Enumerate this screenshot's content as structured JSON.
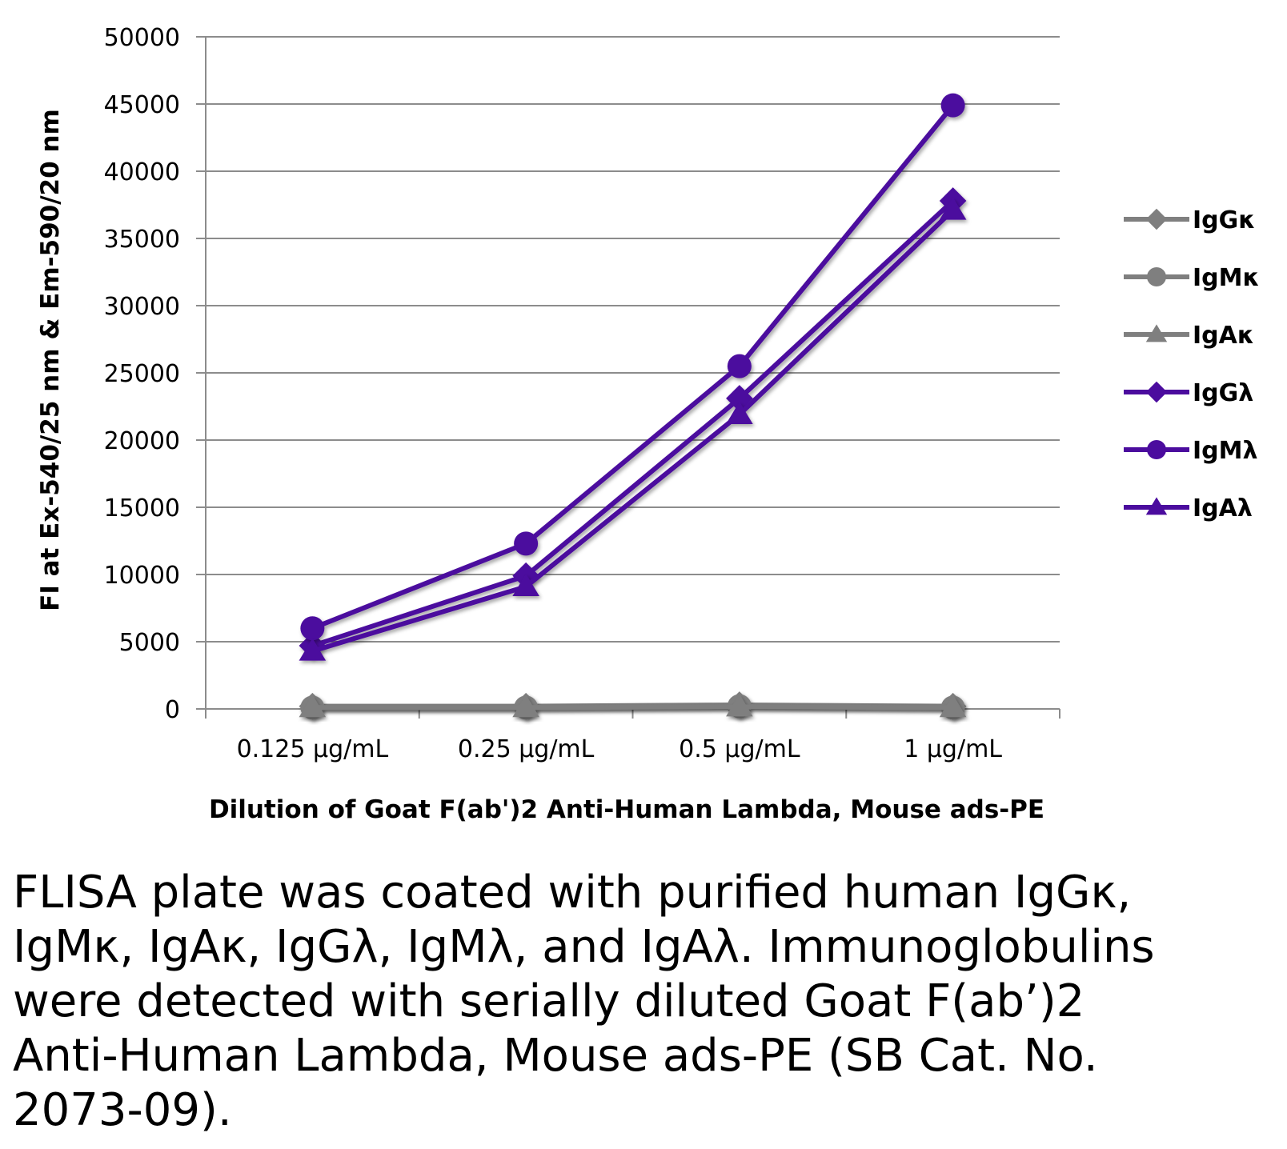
{
  "chart_data": {
    "type": "line",
    "title": "",
    "xlabel": "Dilution of Goat F(ab')2 Anti-Human Lambda, Mouse ads-PE",
    "ylabel": "FI at Ex-540/25 nm & Em-590/20 nm",
    "categories": [
      "0.125 µg/mL",
      "0.25 µg/mL",
      "0.5 µg/mL",
      "1 µg/mL"
    ],
    "ylim": [
      0,
      50000
    ],
    "yticks": [
      "0",
      "5000",
      "10000",
      "15000",
      "20000",
      "25000",
      "30000",
      "35000",
      "40000",
      "45000",
      "50000"
    ],
    "grid": "horizontal",
    "legend_position": "right",
    "series": [
      {
        "name": "IgGκ",
        "values": [
          200,
          200,
          300,
          200
        ],
        "color": "#7f7f7f",
        "marker": "diamond"
      },
      {
        "name": "IgMκ",
        "values": [
          100,
          100,
          200,
          100
        ],
        "color": "#7f7f7f",
        "marker": "circle"
      },
      {
        "name": "IgAκ",
        "values": [
          100,
          100,
          150,
          100
        ],
        "color": "#7f7f7f",
        "marker": "triangle"
      },
      {
        "name": "IgGλ",
        "values": [
          4700,
          9900,
          23100,
          37800
        ],
        "color": "#4b0c9e",
        "marker": "diamond"
      },
      {
        "name": "IgMλ",
        "values": [
          6000,
          12300,
          25500,
          44900
        ],
        "color": "#4b0c9e",
        "marker": "circle"
      },
      {
        "name": "IgAλ",
        "values": [
          4300,
          9100,
          21900,
          37100
        ],
        "color": "#4b0c9e",
        "marker": "triangle"
      }
    ]
  },
  "caption": "FLISA plate was coated with purified human IgGκ, IgMκ, IgAκ, IgGλ, IgMλ, and IgAλ. Immunoglobulins were detected with serially diluted Goat F(ab’)2 Anti-Human Lambda, Mouse ads-PE (SB Cat. No. 2073-09)."
}
